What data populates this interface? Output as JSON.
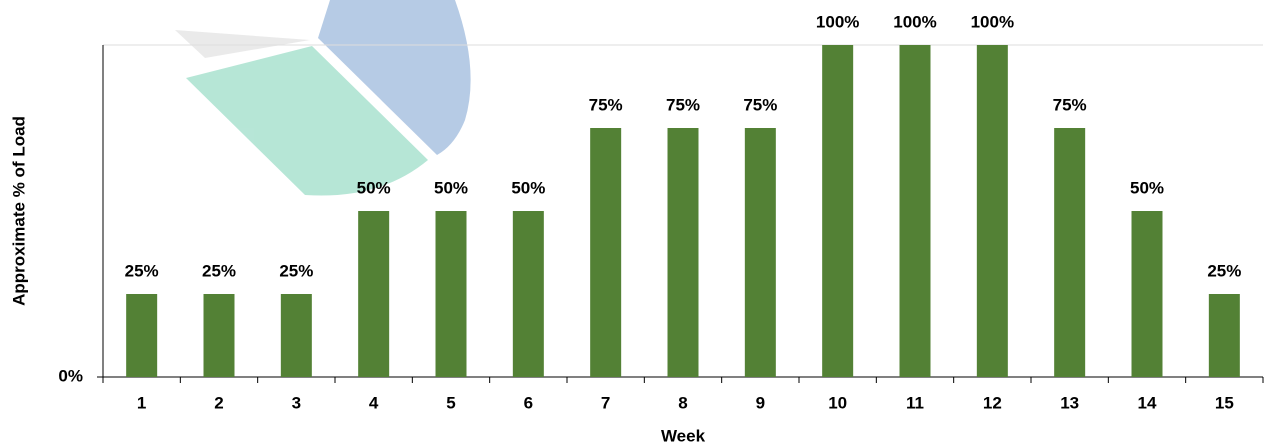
{
  "chart_data": {
    "type": "bar",
    "xlabel": "Week",
    "ylabel": "Approximate % of Load",
    "categories": [
      "1",
      "2",
      "3",
      "4",
      "5",
      "6",
      "7",
      "8",
      "9",
      "10",
      "11",
      "12",
      "13",
      "14",
      "15"
    ],
    "values": [
      25,
      25,
      25,
      50,
      50,
      50,
      75,
      75,
      75,
      100,
      100,
      100,
      75,
      50,
      25
    ],
    "value_labels": [
      "25%",
      "25%",
      "25%",
      "50%",
      "50%",
      "50%",
      "75%",
      "75%",
      "75%",
      "100%",
      "100%",
      "100%",
      "75%",
      "50%",
      "25%"
    ],
    "color": "#538135",
    "ylim": [
      0,
      100
    ],
    "yticks": [
      {
        "value": 0,
        "label": "0%"
      }
    ]
  }
}
